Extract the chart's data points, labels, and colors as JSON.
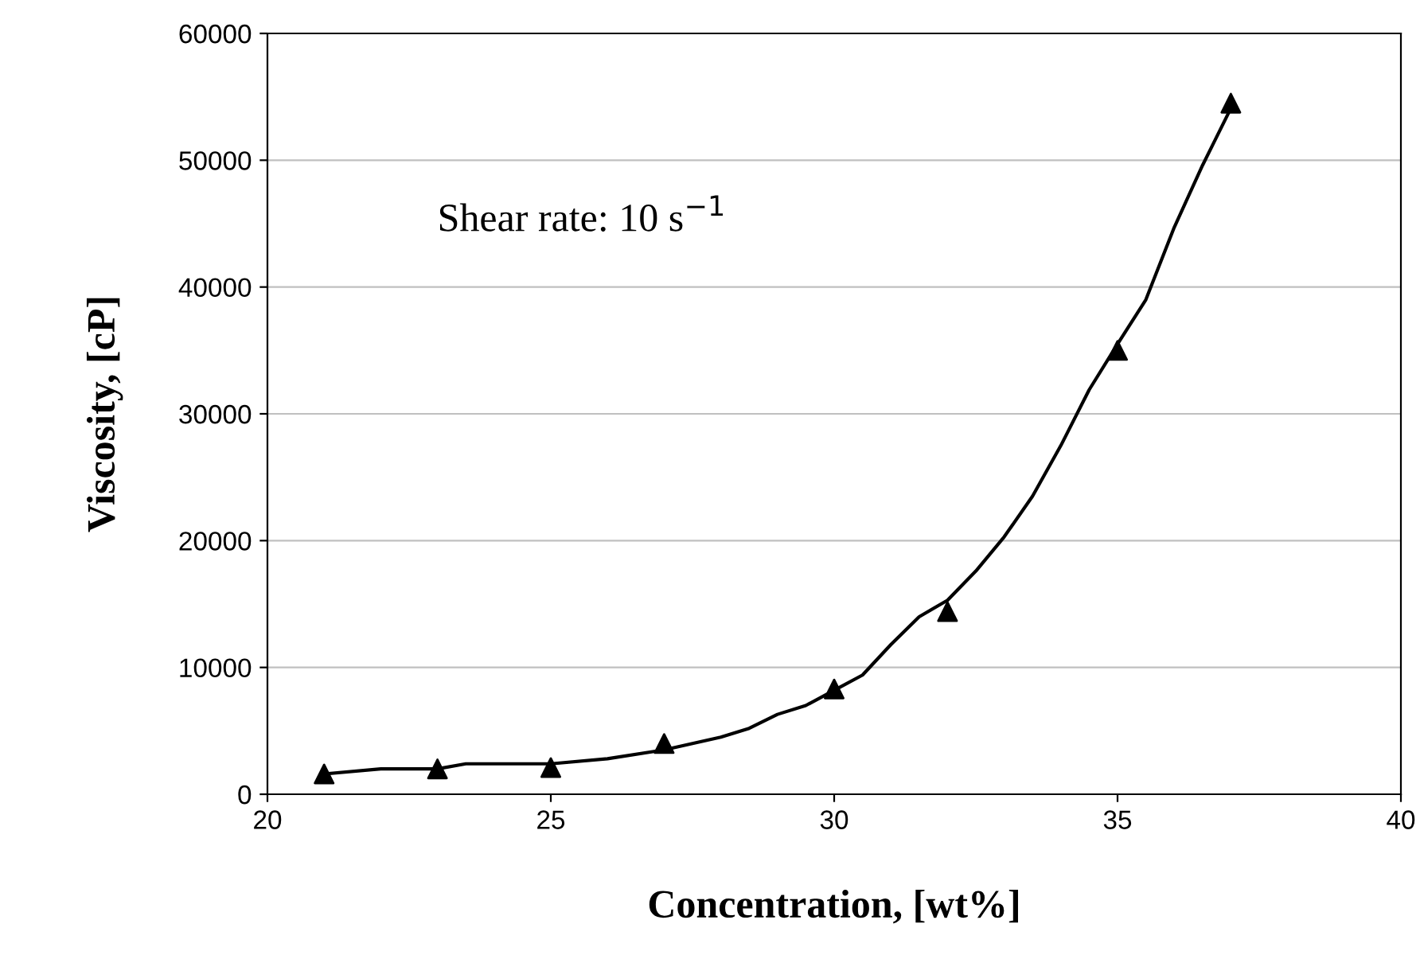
{
  "chart_data": {
    "type": "scatter",
    "xlabel": "Concentration, [wt%]",
    "ylabel": "Viscosity, [cP]",
    "annotations": [
      "Shear rate: 10 s$^{−1}$"
    ],
    "xlim": [
      20,
      40
    ],
    "xticks": [
      20,
      25,
      30,
      35,
      40
    ],
    "ylim": [
      0,
      60000
    ],
    "yticks": [
      0,
      10000,
      20000,
      30000,
      40000,
      50000,
      60000
    ],
    "grid": "y",
    "legend": false,
    "series": [
      {
        "color": "#000000",
        "marker": "triangle",
        "x": [
          21,
          23,
          25,
          27,
          30,
          32,
          35,
          37
        ],
        "values": [
          1600,
          2000,
          2100,
          4000,
          8300,
          14400,
          35000,
          54500
        ]
      },
      {
        "type": "line",
        "color": "#000000",
        "marker": "none",
        "line_style": "solid",
        "x": [
          21,
          22,
          23,
          23.5,
          25,
          26,
          27,
          27.5,
          28,
          28.5,
          29,
          29.5,
          30,
          30.5,
          31,
          31.5,
          32,
          32.5,
          33,
          33.5,
          34,
          34.5,
          35,
          35.5,
          36,
          36.5,
          37
        ],
        "values": [
          1600,
          2000,
          2000,
          2400,
          2400,
          2800,
          3500,
          4000,
          4500,
          5200,
          6300,
          7000,
          8200,
          9400,
          11800,
          14000,
          15300,
          17600,
          20300,
          23500,
          27500,
          31900,
          35500,
          39000,
          44700,
          49600,
          54100
        ]
      }
    ]
  }
}
